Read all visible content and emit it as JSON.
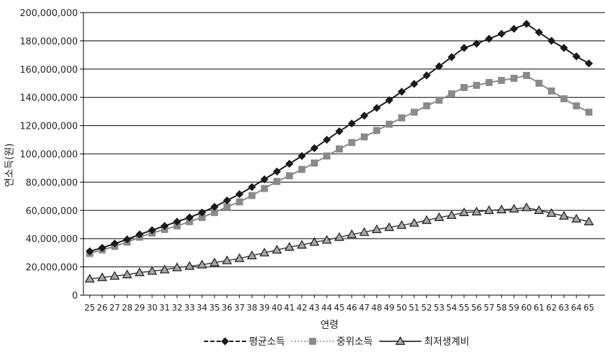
{
  "chart_data": {
    "type": "line",
    "xlabel": "연령",
    "ylabel": "연소득(원)",
    "ylim": [
      0,
      200000000
    ],
    "yticks": [
      0,
      20000000,
      40000000,
      60000000,
      80000000,
      100000000,
      120000000,
      140000000,
      160000000,
      180000000,
      200000000
    ],
    "ytick_labels": [
      "0",
      "20,000,000",
      "40,000,000",
      "60,000,000",
      "80,000,000",
      "100,000,000",
      "120,000,000",
      "140,000,000",
      "160,000,000",
      "180,000,000",
      "200,000,000"
    ],
    "x": [
      25,
      26,
      27,
      28,
      29,
      30,
      31,
      32,
      33,
      34,
      35,
      36,
      37,
      38,
      39,
      40,
      41,
      42,
      43,
      44,
      45,
      46,
      47,
      48,
      49,
      50,
      51,
      52,
      53,
      54,
      55,
      56,
      57,
      58,
      59,
      60,
      61,
      62,
      63,
      64,
      65
    ],
    "x_tick_labels": [
      "25",
      "26",
      "27",
      "28",
      "29",
      "30",
      "31",
      "32",
      "33",
      "34",
      "35",
      "36",
      "37",
      "38",
      "39",
      "40",
      "41",
      "42",
      "43",
      "44",
      "45",
      "46",
      "47",
      "48",
      "49",
      "50",
      "51",
      "52",
      "53",
      "54",
      "55",
      "56",
      "57",
      "58",
      "59",
      "60",
      "61",
      "62",
      "63",
      "64",
      "65"
    ],
    "grid": "horizontal",
    "legend_position": "bottom",
    "series": [
      {
        "name": "평균소득",
        "color": "#1a1a1a",
        "marker": "diamond",
        "line": "dashed",
        "values": [
          31000000,
          33500000,
          36500000,
          39500000,
          43000000,
          46000000,
          49000000,
          52000000,
          55000000,
          58500000,
          62500000,
          67000000,
          71500000,
          76500000,
          82000000,
          87500000,
          93000000,
          98500000,
          104000000,
          110000000,
          116000000,
          121500000,
          127000000,
          132500000,
          138000000,
          144000000,
          149500000,
          155500000,
          162000000,
          168500000,
          175000000,
          178000000,
          181500000,
          185000000,
          188500000,
          192000000,
          186000000,
          180000000,
          175000000,
          169000000,
          164000000
        ]
      },
      {
        "name": "중위소득",
        "color": "#8a8a8a",
        "marker": "square",
        "line": "dotted",
        "values": [
          29500000,
          32000000,
          34500000,
          37500000,
          41000000,
          44000000,
          46500000,
          49000000,
          52000000,
          55000000,
          58500000,
          62500000,
          66000000,
          70500000,
          75500000,
          80500000,
          84500000,
          89000000,
          93500000,
          98500000,
          103500000,
          108000000,
          112000000,
          116500000,
          121000000,
          125500000,
          129500000,
          134000000,
          138000000,
          142500000,
          147000000,
          148500000,
          150500000,
          152000000,
          153500000,
          155500000,
          150000000,
          144500000,
          139000000,
          134000000,
          129500000
        ]
      },
      {
        "name": "최저생계비",
        "color": "#444444",
        "marker": "triangle",
        "line": "solid",
        "values": [
          11500000,
          12500000,
          13500000,
          14500000,
          16000000,
          17000000,
          18000000,
          19500000,
          20500000,
          21500000,
          23000000,
          24500000,
          26000000,
          28000000,
          30000000,
          32000000,
          34000000,
          35500000,
          37500000,
          39000000,
          41000000,
          43000000,
          44500000,
          46500000,
          48000000,
          49500000,
          51000000,
          53000000,
          55000000,
          56500000,
          58500000,
          59000000,
          60000000,
          60500000,
          61000000,
          62000000,
          60000000,
          58000000,
          56000000,
          54000000,
          52000000
        ]
      }
    ]
  }
}
